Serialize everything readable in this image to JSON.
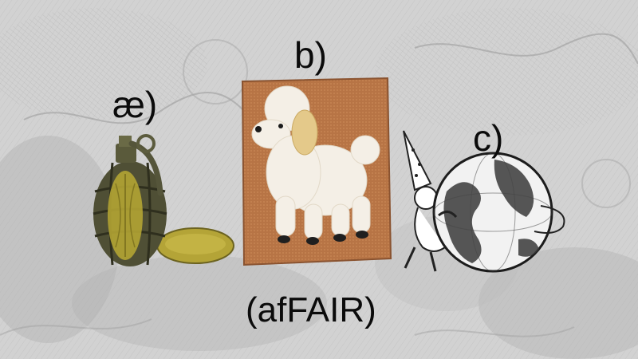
{
  "labels": {
    "a": "æ)",
    "b": "b)",
    "c": "c)"
  },
  "caption": "(afFAIR)",
  "images": {
    "a": "grenade-and-pickle-collage",
    "b": "poodle-needlepoint-picture",
    "c": "wizard-with-globe-engraving"
  },
  "colors": {
    "background": "#cfcfcf",
    "text": "#0b0b0b",
    "canvas": "#b77445",
    "pickle": "#b4a437"
  }
}
